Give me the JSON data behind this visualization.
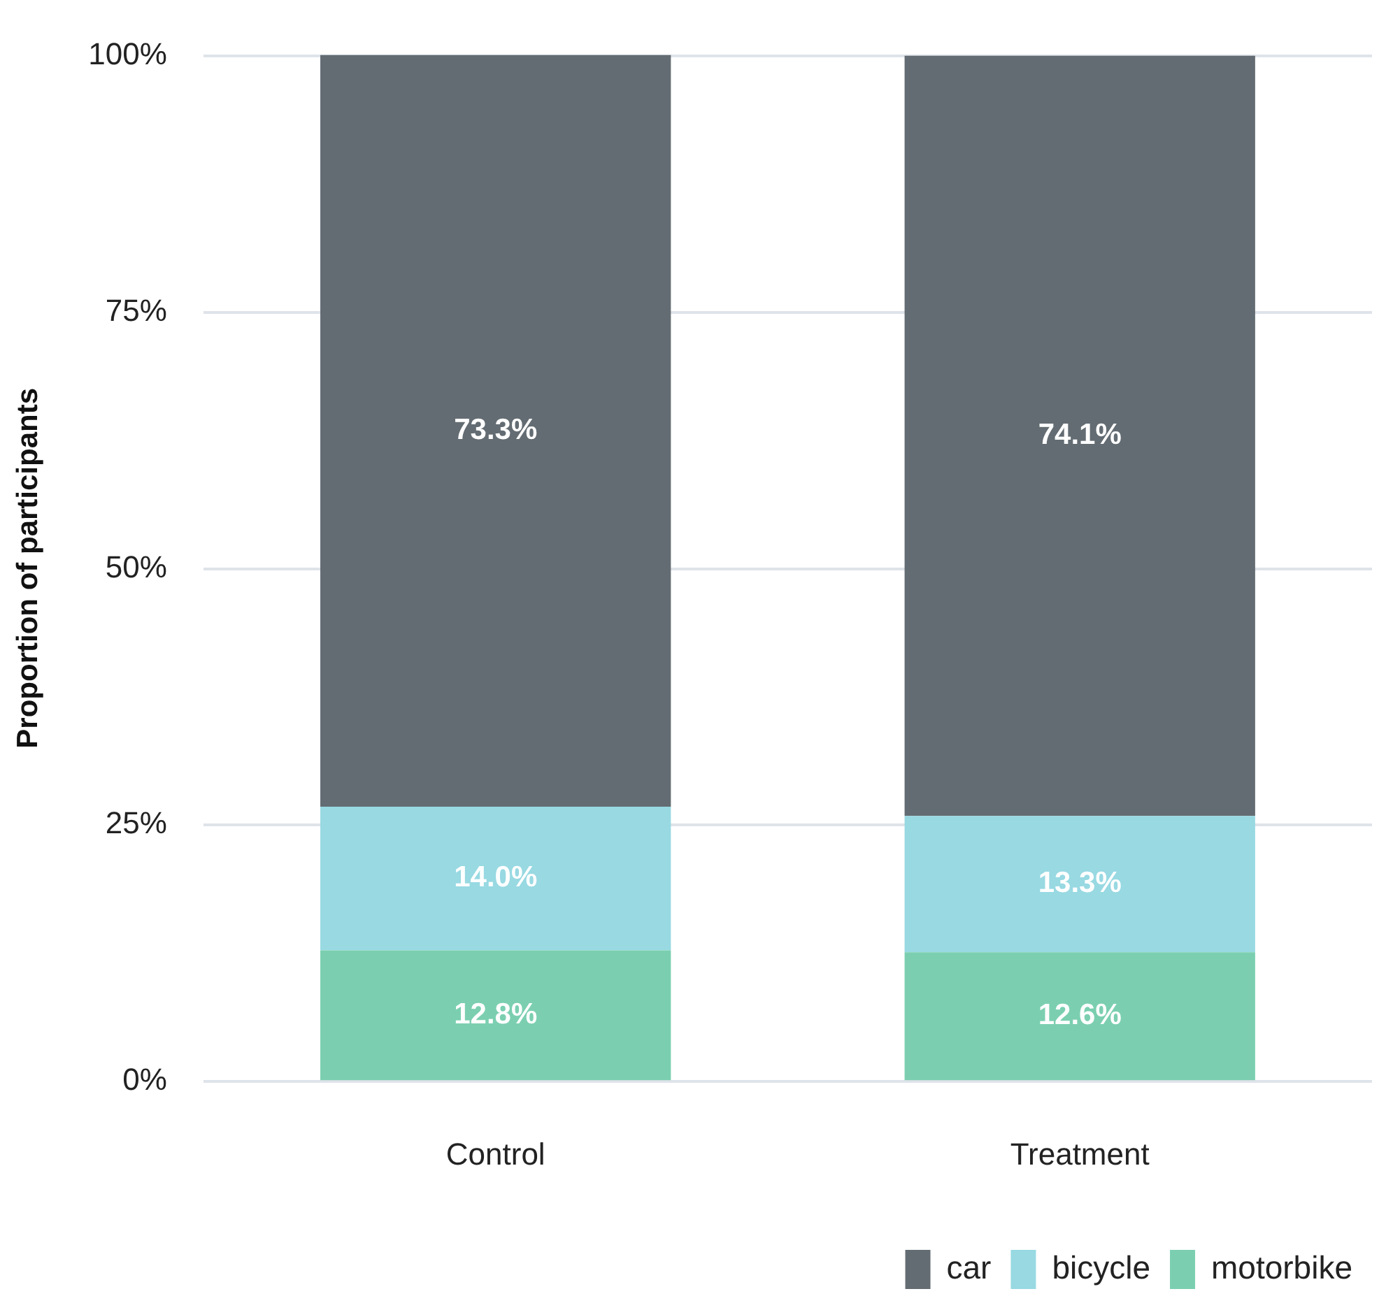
{
  "chart_data": {
    "type": "bar",
    "stacked": true,
    "ylabel": "Proportion of participants",
    "categories": [
      "Control",
      "Treatment"
    ],
    "series": [
      {
        "name": "motorbike",
        "color": "#7bcfb0",
        "values": [
          12.8,
          12.6
        ],
        "value_labels": [
          "12.8%",
          "12.6%"
        ]
      },
      {
        "name": "bicycle",
        "color": "#98d9e2",
        "values": [
          14.0,
          13.3
        ],
        "value_labels": [
          "14.0%",
          "13.3%"
        ]
      },
      {
        "name": "car",
        "color": "#636c72",
        "values": [
          73.3,
          74.1
        ],
        "value_labels": [
          "73.3%",
          "74.1%"
        ]
      }
    ],
    "ylim": [
      0,
      100.1
    ],
    "yticks": [
      {
        "value": 0,
        "label": "0%"
      },
      {
        "value": 25,
        "label": "25%"
      },
      {
        "value": 50,
        "label": "50%"
      },
      {
        "value": 75,
        "label": "75%"
      },
      {
        "value": 100,
        "label": "100%"
      }
    ],
    "grid": "y",
    "legend": "bottom right"
  }
}
